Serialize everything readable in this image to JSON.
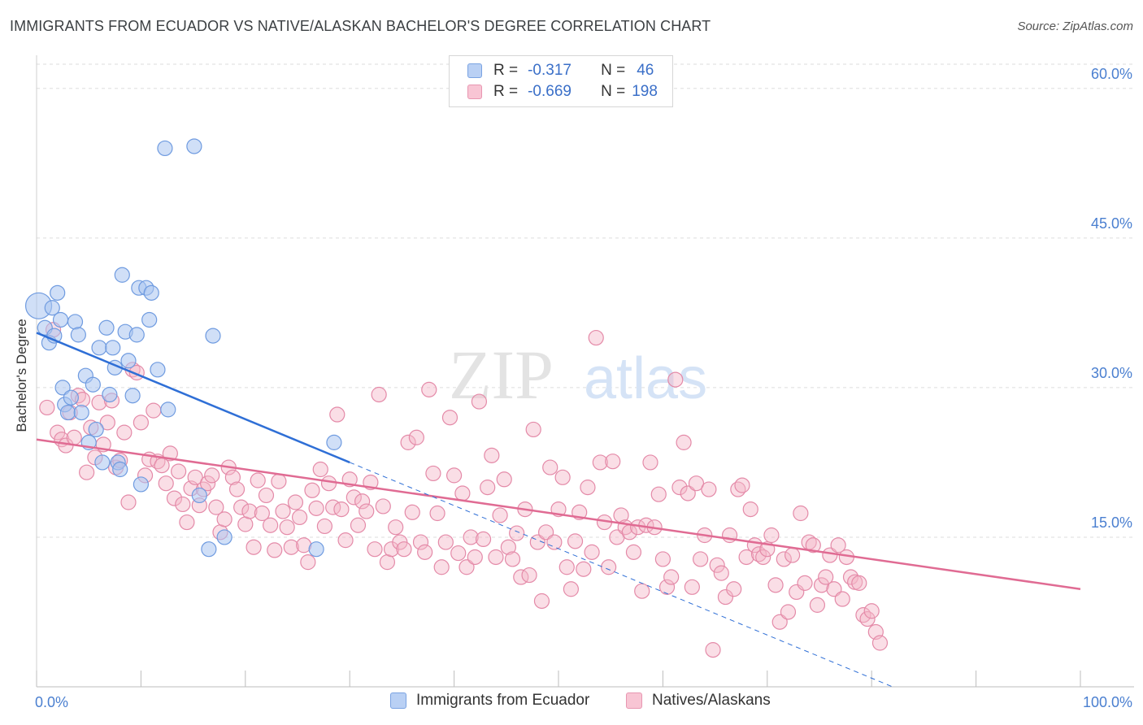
{
  "title": "IMMIGRANTS FROM ECUADOR VS NATIVE/ALASKAN BACHELOR'S DEGREE CORRELATION CHART",
  "source": "Source: ZipAtlas.com",
  "watermark": {
    "zip": "ZIP",
    "atlas": "atlas"
  },
  "legend": {
    "r_label": "R =",
    "n_label": "N =",
    "series1": {
      "r": "-0.317",
      "n": "46"
    },
    "series2": {
      "r": "-0.669",
      "n": "198"
    }
  },
  "colors": {
    "blue_fill": "#a9c4f0",
    "blue_stroke": "#6f9be0",
    "blue_line": "#2f6fd6",
    "pink_fill": "#f4b6c8",
    "pink_stroke": "#e48aa8",
    "pink_line": "#e06b93",
    "tick_color": "#4a7fd0",
    "grid": "#dddddd"
  },
  "chart_data": {
    "type": "scatter",
    "title": "IMMIGRANTS FROM ECUADOR VS NATIVE/ALASKAN BACHELOR'S DEGREE CORRELATION CHART",
    "xlabel": "",
    "ylabel": "Bachelor's Degree",
    "xlim": [
      0,
      100
    ],
    "ylim": [
      0,
      63
    ],
    "x_tick_labels": [
      "0.0%",
      "100.0%"
    ],
    "y_ticks": [
      15,
      30,
      45,
      60
    ],
    "y_tick_labels": [
      "15.0%",
      "30.0%",
      "45.0%",
      "60.0%"
    ],
    "legend_position": "top-center",
    "series": [
      {
        "name": "Immigrants from Ecuador",
        "r": -0.317,
        "n": 46,
        "trend": {
          "x0": 0,
          "y0": 35.5,
          "x1": 30,
          "y1": 22.5,
          "dashed_x1": 82,
          "dashed_y1": 0
        },
        "points": [
          [
            0.2,
            38.2
          ],
          [
            0.8,
            36.0
          ],
          [
            1.2,
            34.5
          ],
          [
            1.5,
            38.0
          ],
          [
            1.7,
            35.2
          ],
          [
            2.0,
            39.5
          ],
          [
            2.3,
            36.8
          ],
          [
            2.5,
            30.0
          ],
          [
            2.7,
            28.3
          ],
          [
            3.0,
            27.5
          ],
          [
            3.3,
            29.0
          ],
          [
            3.7,
            36.6
          ],
          [
            4.0,
            35.3
          ],
          [
            4.3,
            27.5
          ],
          [
            4.7,
            31.2
          ],
          [
            5.0,
            24.5
          ],
          [
            5.4,
            30.3
          ],
          [
            5.7,
            25.8
          ],
          [
            6.0,
            34.0
          ],
          [
            6.3,
            22.5
          ],
          [
            6.7,
            36.0
          ],
          [
            7.0,
            29.3
          ],
          [
            7.3,
            34.0
          ],
          [
            7.5,
            32.0
          ],
          [
            7.8,
            22.5
          ],
          [
            8.0,
            21.8
          ],
          [
            8.2,
            41.3
          ],
          [
            8.5,
            35.6
          ],
          [
            8.8,
            32.7
          ],
          [
            9.2,
            29.2
          ],
          [
            9.6,
            35.3
          ],
          [
            9.8,
            40.0
          ],
          [
            10.0,
            20.3
          ],
          [
            10.5,
            40.0
          ],
          [
            10.8,
            36.8
          ],
          [
            11.0,
            39.5
          ],
          [
            11.6,
            31.8
          ],
          [
            12.6,
            27.8
          ],
          [
            12.3,
            54.0
          ],
          [
            15.1,
            54.2
          ],
          [
            15.6,
            19.2
          ],
          [
            16.5,
            13.8
          ],
          [
            16.9,
            35.2
          ],
          [
            18.0,
            15.0
          ],
          [
            26.8,
            13.8
          ],
          [
            28.5,
            24.5
          ]
        ]
      },
      {
        "name": "Natives/Alaskans",
        "r": -0.669,
        "n": 198,
        "trend": {
          "x0": 0,
          "y0": 24.8,
          "x1": 100,
          "y1": 9.8
        },
        "points": [
          [
            1.0,
            28.0
          ],
          [
            1.6,
            35.8
          ],
          [
            2.0,
            25.5
          ],
          [
            2.4,
            24.8
          ],
          [
            2.8,
            24.2
          ],
          [
            3.2,
            27.5
          ],
          [
            3.6,
            25.0
          ],
          [
            4.0,
            29.2
          ],
          [
            4.4,
            28.8
          ],
          [
            4.8,
            21.5
          ],
          [
            5.2,
            26.0
          ],
          [
            5.6,
            23.0
          ],
          [
            6.0,
            28.5
          ],
          [
            6.4,
            24.3
          ],
          [
            6.8,
            26.5
          ],
          [
            7.2,
            28.7
          ],
          [
            7.6,
            22.0
          ],
          [
            8.0,
            22.7
          ],
          [
            8.4,
            25.5
          ],
          [
            8.8,
            18.5
          ],
          [
            9.2,
            31.8
          ],
          [
            9.6,
            31.5
          ],
          [
            10.0,
            26.5
          ],
          [
            10.4,
            21.2
          ],
          [
            10.8,
            22.8
          ],
          [
            11.2,
            27.7
          ],
          [
            11.6,
            22.6
          ],
          [
            12.0,
            22.2
          ],
          [
            12.4,
            20.4
          ],
          [
            12.8,
            23.4
          ],
          [
            13.2,
            18.9
          ],
          [
            13.6,
            21.6
          ],
          [
            14.0,
            18.3
          ],
          [
            14.4,
            16.5
          ],
          [
            14.8,
            19.9
          ],
          [
            15.2,
            21.0
          ],
          [
            15.6,
            18.2
          ],
          [
            16.0,
            19.8
          ],
          [
            16.4,
            20.4
          ],
          [
            16.8,
            21.2
          ],
          [
            17.2,
            18.0
          ],
          [
            17.6,
            15.5
          ],
          [
            18.0,
            16.8
          ],
          [
            18.4,
            22.0
          ],
          [
            18.8,
            21.0
          ],
          [
            19.2,
            19.8
          ],
          [
            19.6,
            18.0
          ],
          [
            20.0,
            16.3
          ],
          [
            20.4,
            17.6
          ],
          [
            20.8,
            14.0
          ],
          [
            21.2,
            20.7
          ],
          [
            21.6,
            17.4
          ],
          [
            22.0,
            19.2
          ],
          [
            22.4,
            16.2
          ],
          [
            22.8,
            13.7
          ],
          [
            23.2,
            20.6
          ],
          [
            23.6,
            17.6
          ],
          [
            24.0,
            16.0
          ],
          [
            24.4,
            14.0
          ],
          [
            24.8,
            18.5
          ],
          [
            25.2,
            17.0
          ],
          [
            25.6,
            14.2
          ],
          [
            26.0,
            12.5
          ],
          [
            26.4,
            19.7
          ],
          [
            26.8,
            17.9
          ],
          [
            27.2,
            21.8
          ],
          [
            27.6,
            16.1
          ],
          [
            28.0,
            20.4
          ],
          [
            28.4,
            18.0
          ],
          [
            28.8,
            27.3
          ],
          [
            29.2,
            17.8
          ],
          [
            29.6,
            14.7
          ],
          [
            30.0,
            20.8
          ],
          [
            30.4,
            19.0
          ],
          [
            30.8,
            16.2
          ],
          [
            31.2,
            18.6
          ],
          [
            31.6,
            17.6
          ],
          [
            32.0,
            20.5
          ],
          [
            32.4,
            13.8
          ],
          [
            32.8,
            29.3
          ],
          [
            33.2,
            18.1
          ],
          [
            33.6,
            12.5
          ],
          [
            34.0,
            13.8
          ],
          [
            34.4,
            16.0
          ],
          [
            34.8,
            14.5
          ],
          [
            35.2,
            13.8
          ],
          [
            35.6,
            24.5
          ],
          [
            36.0,
            17.5
          ],
          [
            36.4,
            25.0
          ],
          [
            36.8,
            14.5
          ],
          [
            37.2,
            13.5
          ],
          [
            37.6,
            29.8
          ],
          [
            38.0,
            21.4
          ],
          [
            38.4,
            17.4
          ],
          [
            38.8,
            12.0
          ],
          [
            39.2,
            14.5
          ],
          [
            39.6,
            27.0
          ],
          [
            40.0,
            21.2
          ],
          [
            40.4,
            13.4
          ],
          [
            40.8,
            19.4
          ],
          [
            41.2,
            12.0
          ],
          [
            41.6,
            15.0
          ],
          [
            42.0,
            13.0
          ],
          [
            42.4,
            28.6
          ],
          [
            42.8,
            14.8
          ],
          [
            43.2,
            20.0
          ],
          [
            43.6,
            23.2
          ],
          [
            44.0,
            13.0
          ],
          [
            44.4,
            17.2
          ],
          [
            44.8,
            20.8
          ],
          [
            45.2,
            14.0
          ],
          [
            45.6,
            12.8
          ],
          [
            46.0,
            15.4
          ],
          [
            46.4,
            11.0
          ],
          [
            46.8,
            17.8
          ],
          [
            47.2,
            11.2
          ],
          [
            47.6,
            25.8
          ],
          [
            48.0,
            14.5
          ],
          [
            48.4,
            8.6
          ],
          [
            48.8,
            15.5
          ],
          [
            49.2,
            22.0
          ],
          [
            49.6,
            14.5
          ],
          [
            50.0,
            17.8
          ],
          [
            50.4,
            21.0
          ],
          [
            50.8,
            12.0
          ],
          [
            51.2,
            9.8
          ],
          [
            51.6,
            14.6
          ],
          [
            52.0,
            17.5
          ],
          [
            52.4,
            11.8
          ],
          [
            52.8,
            20.0
          ],
          [
            53.2,
            13.5
          ],
          [
            53.6,
            35.0
          ],
          [
            54.0,
            22.5
          ],
          [
            54.4,
            16.5
          ],
          [
            54.8,
            12.0
          ],
          [
            55.2,
            22.6
          ],
          [
            55.6,
            15.0
          ],
          [
            56.0,
            17.2
          ],
          [
            56.4,
            16.0
          ],
          [
            56.8,
            15.5
          ],
          [
            57.2,
            13.5
          ],
          [
            57.6,
            16.0
          ],
          [
            58.0,
            9.6
          ],
          [
            58.4,
            16.2
          ],
          [
            58.8,
            22.5
          ],
          [
            59.2,
            16.0
          ],
          [
            59.6,
            19.3
          ],
          [
            60.0,
            12.8
          ],
          [
            60.4,
            10.0
          ],
          [
            60.8,
            11.0
          ],
          [
            61.2,
            30.8
          ],
          [
            61.6,
            20.0
          ],
          [
            62.0,
            24.5
          ],
          [
            62.4,
            19.4
          ],
          [
            62.8,
            10.0
          ],
          [
            63.2,
            20.4
          ],
          [
            63.6,
            12.8
          ],
          [
            64.0,
            15.2
          ],
          [
            64.4,
            19.8
          ],
          [
            64.8,
            3.7
          ],
          [
            65.2,
            12.2
          ],
          [
            65.6,
            11.4
          ],
          [
            66.0,
            9.0
          ],
          [
            66.4,
            15.2
          ],
          [
            66.8,
            9.8
          ],
          [
            67.2,
            19.8
          ],
          [
            67.6,
            20.2
          ],
          [
            68.0,
            13.0
          ],
          [
            68.4,
            17.8
          ],
          [
            68.8,
            14.2
          ],
          [
            69.2,
            13.3
          ],
          [
            69.6,
            13.0
          ],
          [
            70.0,
            13.8
          ],
          [
            70.4,
            15.2
          ],
          [
            70.8,
            10.2
          ],
          [
            71.2,
            6.5
          ],
          [
            71.6,
            12.8
          ],
          [
            72.0,
            7.5
          ],
          [
            72.4,
            13.2
          ],
          [
            72.8,
            9.5
          ],
          [
            73.2,
            17.4
          ],
          [
            73.6,
            10.4
          ],
          [
            74.0,
            14.5
          ],
          [
            74.4,
            14.2
          ],
          [
            74.8,
            8.2
          ],
          [
            75.2,
            10.2
          ],
          [
            75.6,
            11.0
          ],
          [
            76.0,
            13.2
          ],
          [
            76.4,
            9.8
          ],
          [
            76.8,
            14.2
          ],
          [
            77.2,
            8.8
          ],
          [
            77.6,
            13.0
          ],
          [
            78.0,
            11.0
          ],
          [
            78.4,
            10.5
          ],
          [
            78.8,
            10.4
          ],
          [
            79.2,
            7.2
          ],
          [
            79.6,
            6.8
          ],
          [
            80.0,
            7.6
          ],
          [
            80.4,
            5.5
          ],
          [
            80.8,
            4.4
          ]
        ]
      }
    ]
  },
  "bottom_legend": {
    "series1_label": "Immigrants from Ecuador",
    "series2_label": "Natives/Alaskans"
  }
}
